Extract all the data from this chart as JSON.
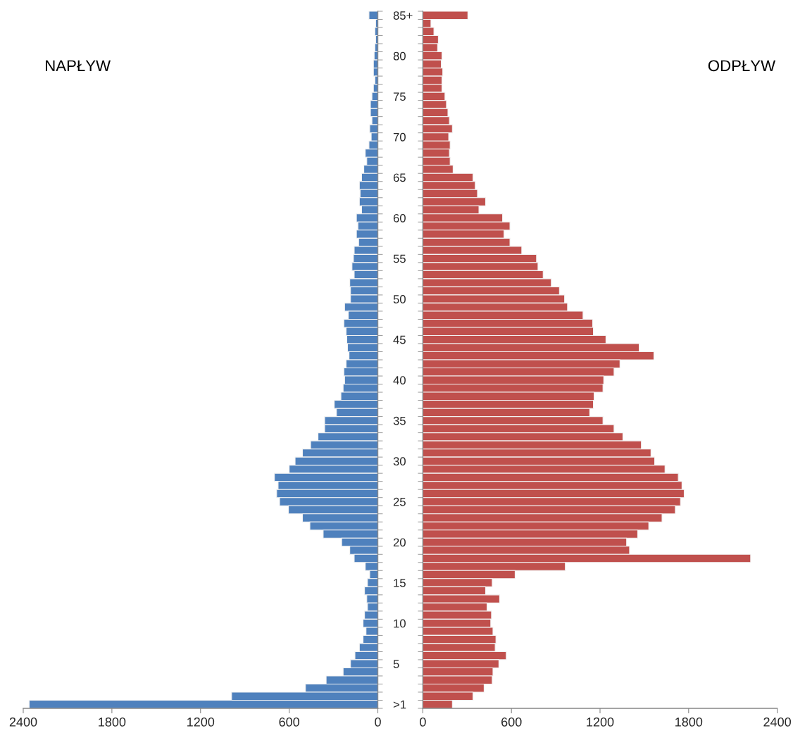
{
  "chart_data": [
    {
      "type": "bar",
      "orientation": "horizontal",
      "title": "NAPŁYW",
      "color": "#4f81bd",
      "tick_labels": "x",
      "categories": [
        null,
        null,
        null,
        null,
        null,
        null,
        null,
        null,
        null,
        null,
        null,
        null,
        null,
        null,
        null,
        null,
        null,
        null,
        null,
        null,
        null,
        null,
        null,
        null,
        null,
        null,
        null,
        null,
        null,
        null,
        null,
        null,
        null,
        null,
        null,
        null,
        null,
        null,
        null,
        null,
        null,
        null,
        null,
        null,
        null,
        null,
        null,
        null,
        null,
        null,
        null,
        null,
        null,
        null,
        null,
        null,
        null,
        null,
        null,
        null,
        null,
        null,
        null,
        null,
        null,
        null,
        null,
        null,
        null,
        null,
        null,
        null,
        null,
        null,
        null,
        null,
        null,
        null,
        null,
        null,
        null,
        null,
        null,
        null,
        null,
        null
      ],
      "values": [
        60,
        15,
        20,
        15,
        20,
        25,
        30,
        30,
        20,
        30,
        40,
        50,
        50,
        40,
        55,
        45,
        60,
        85,
        75,
        95,
        110,
        125,
        120,
        125,
        110,
        145,
        135,
        145,
        130,
        160,
        165,
        175,
        160,
        190,
        185,
        185,
        225,
        200,
        230,
        215,
        210,
        205,
        195,
        215,
        230,
        225,
        235,
        250,
        295,
        280,
        360,
        360,
        405,
        455,
        510,
        560,
        600,
        700,
        675,
        685,
        665,
        605,
        510,
        460,
        370,
        245,
        190,
        160,
        85,
        55,
        70,
        90,
        75,
        70,
        90,
        100,
        80,
        100,
        125,
        155,
        185,
        235,
        350,
        490,
        990,
        2360
      ],
      "xlim": [
        2400,
        0
      ],
      "xticks": [
        2400,
        1800,
        1200,
        600,
        0
      ]
    },
    {
      "type": "bar",
      "orientation": "horizontal",
      "title": "ODPŁYW",
      "color": "#c0504d",
      "categories": [
        "85+",
        null,
        null,
        null,
        null,
        "80",
        null,
        null,
        null,
        null,
        "75",
        null,
        null,
        null,
        null,
        "70",
        null,
        null,
        null,
        null,
        "65",
        null,
        null,
        null,
        null,
        "60",
        null,
        null,
        null,
        null,
        "55",
        null,
        null,
        null,
        null,
        "50",
        null,
        null,
        null,
        null,
        "45",
        null,
        null,
        null,
        null,
        "40",
        null,
        null,
        null,
        null,
        "35",
        null,
        null,
        null,
        null,
        "30",
        null,
        null,
        null,
        null,
        "25",
        null,
        null,
        null,
        null,
        "20",
        null,
        null,
        null,
        null,
        "15",
        null,
        null,
        null,
        null,
        "10",
        null,
        null,
        null,
        null,
        "5",
        null,
        null,
        null,
        null,
        ">1"
      ],
      "values": [
        305,
        55,
        75,
        105,
        100,
        130,
        125,
        135,
        130,
        130,
        150,
        160,
        170,
        180,
        200,
        175,
        185,
        180,
        185,
        205,
        340,
        355,
        370,
        425,
        380,
        540,
        590,
        550,
        590,
        670,
        770,
        780,
        815,
        870,
        925,
        960,
        980,
        1085,
        1150,
        1155,
        1240,
        1465,
        1565,
        1335,
        1295,
        1225,
        1220,
        1160,
        1155,
        1130,
        1220,
        1295,
        1355,
        1480,
        1545,
        1570,
        1640,
        1730,
        1755,
        1770,
        1745,
        1710,
        1620,
        1530,
        1455,
        1380,
        1400,
        2220,
        965,
        625,
        470,
        425,
        520,
        435,
        465,
        460,
        475,
        495,
        490,
        565,
        515,
        475,
        470,
        415,
        340,
        200
      ],
      "xlim": [
        0,
        2400
      ],
      "xticks": [
        0,
        600,
        1200,
        1800,
        2400
      ]
    }
  ]
}
